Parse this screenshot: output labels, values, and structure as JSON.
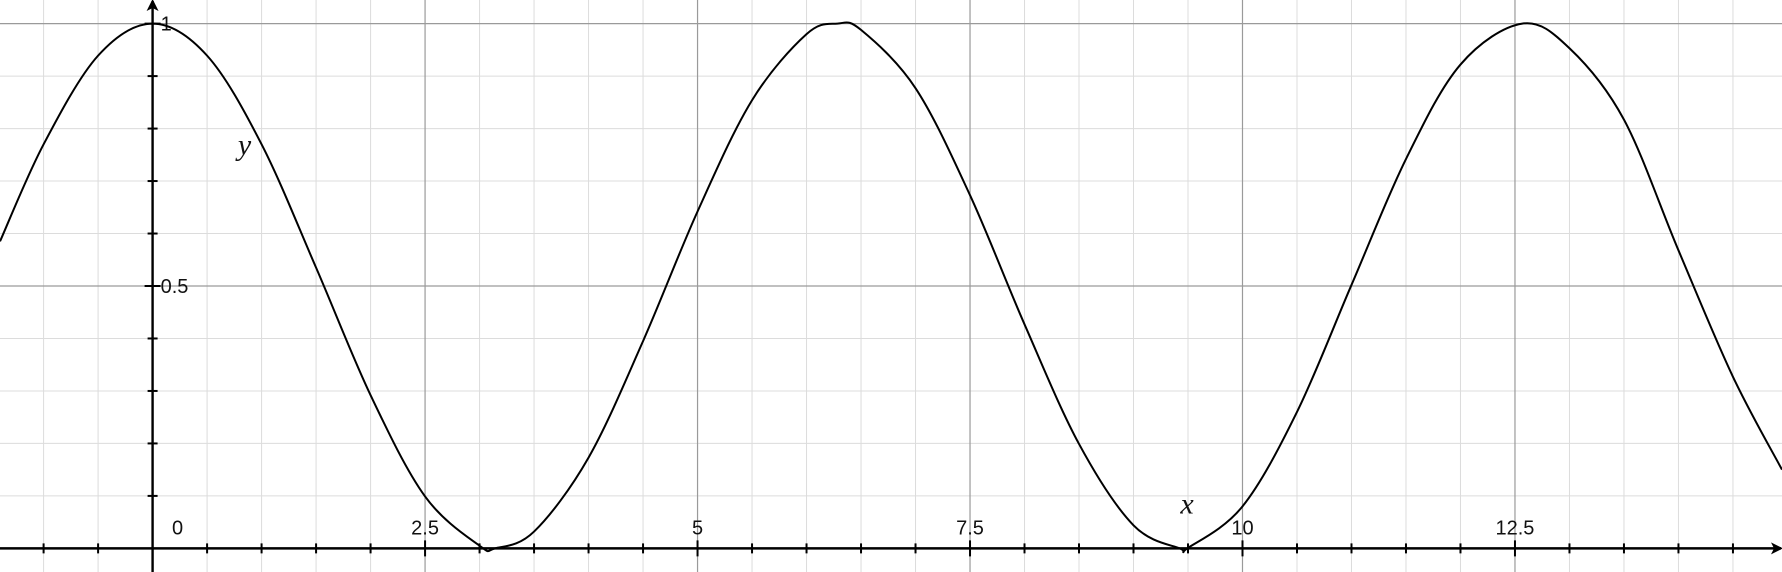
{
  "chart_data": {
    "type": "line",
    "xlabel": "x",
    "ylabel": "y",
    "xlim": [
      -1.4,
      14.95
    ],
    "ylim": [
      -0.045,
      1.045
    ],
    "x_ticks": [
      0,
      2.5,
      5,
      7.5,
      10,
      12.5
    ],
    "x_tick_labels": [
      "0",
      "2.5",
      "5",
      "7.5",
      "10",
      "12.5"
    ],
    "y_ticks": [
      0.5,
      1
    ],
    "y_tick_labels": [
      "0.5",
      "1"
    ],
    "grid": true,
    "legend": "none",
    "series": [
      {
        "x": [
          -1.4,
          -1.0,
          -0.5,
          0,
          0.5,
          1.0,
          1.5,
          2.0,
          2.5,
          3.0,
          3.1416,
          3.5,
          4.0,
          4.5,
          5.0,
          5.5,
          6.0,
          6.2832,
          6.5,
          7.0,
          7.5,
          8.0,
          8.5,
          9.0,
          9.4248,
          9.5,
          10.0,
          10.5,
          11.0,
          11.5,
          12.0,
          12.5664,
          13.0,
          13.5,
          14.0,
          14.5,
          14.95
        ],
        "y": [
          0.585,
          0.77,
          0.939,
          1.0,
          0.939,
          0.77,
          0.535,
          0.292,
          0.099,
          0.005,
          0.0,
          0.032,
          0.173,
          0.395,
          0.642,
          0.854,
          0.98,
          1.0,
          0.988,
          0.877,
          0.673,
          0.427,
          0.199,
          0.044,
          0.0,
          0.001,
          0.08,
          0.26,
          0.502,
          0.742,
          0.922,
          1.0,
          0.953,
          0.817,
          0.568,
          0.327,
          0.15
        ]
      }
    ],
    "colors": {
      "curve": "#000000",
      "axis": "#000000",
      "major_grid": "#9a9a9a",
      "minor_grid": "#dcdcdc",
      "text": "#111111"
    }
  }
}
